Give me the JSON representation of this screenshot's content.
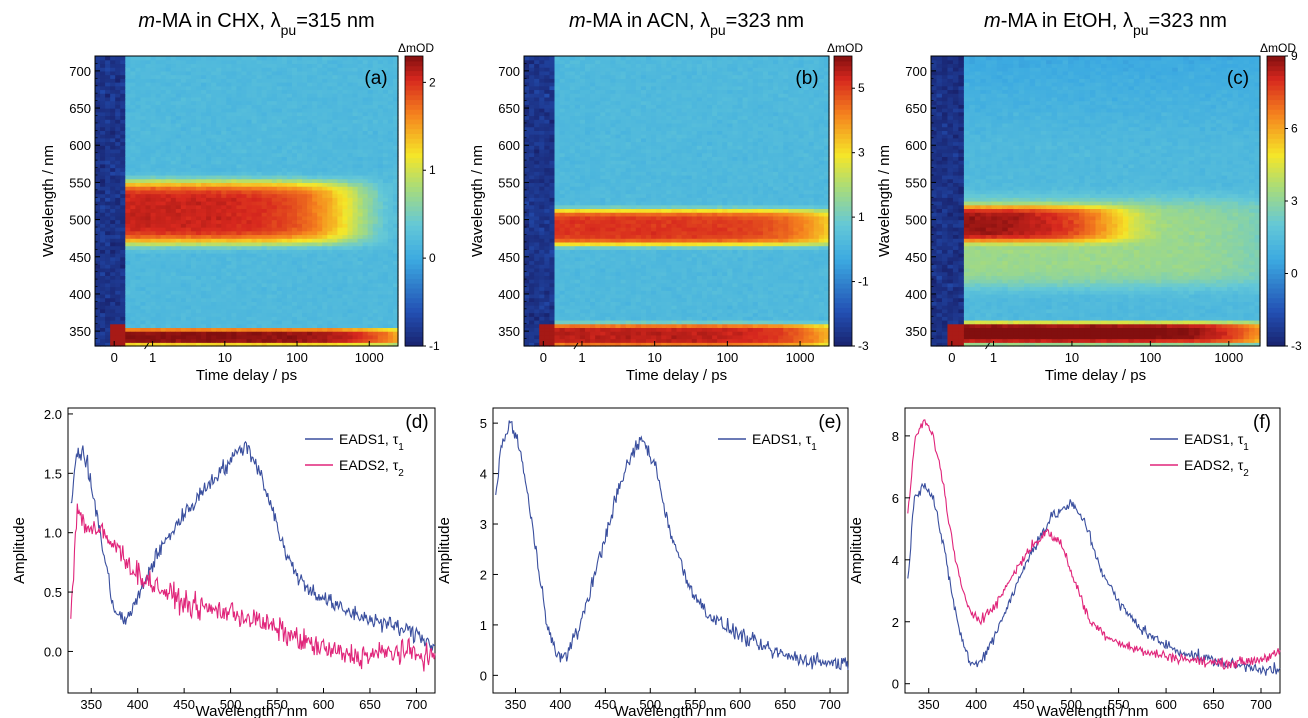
{
  "chart_data": [
    {
      "panel": "(a)",
      "type": "heatmap",
      "title": "m-MA in CHX, λpu=315 nm",
      "title_parts": {
        "italic": "m",
        "rest": "-MA in CHX, λ",
        "sub": "pu",
        "tail": "=315 nm"
      },
      "xlabel": "Time delay / ps",
      "ylabel": "Wavelength / nm",
      "x_ticks": [
        "0",
        "1",
        "10",
        "100",
        "1000"
      ],
      "y_ticks": [
        350,
        400,
        450,
        500,
        550,
        600,
        650,
        700
      ],
      "ylim": [
        330,
        720
      ],
      "colorbar": {
        "label": "ΔmOD",
        "ticks": [
          -1,
          0,
          1,
          2
        ],
        "range": [
          -1,
          2.3
        ]
      },
      "bands": [
        {
          "center_nm": 510,
          "width_nm": 38,
          "amplitude": 1.9,
          "decay_ps": 700
        },
        {
          "center_nm": 343,
          "width_nm": 10,
          "amplitude": 2.1,
          "decay_ps": 5000
        }
      ],
      "background": 0.55
    },
    {
      "panel": "(b)",
      "type": "heatmap",
      "title": "m-MA in ACN, λpu=323 nm",
      "title_parts": {
        "italic": "m",
        "rest": "-MA in ACN, λ",
        "sub": "pu",
        "tail": "=323 nm"
      },
      "xlabel": "Time delay / ps",
      "ylabel": "Wavelength / nm",
      "x_ticks": [
        "0",
        "1",
        "10",
        "100",
        "1000"
      ],
      "y_ticks": [
        350,
        400,
        450,
        500,
        550,
        600,
        650,
        700
      ],
      "ylim": [
        330,
        720
      ],
      "colorbar": {
        "label": "ΔmOD",
        "ticks": [
          -3,
          -1,
          1,
          3,
          5
        ],
        "range": [
          -3,
          6
        ]
      },
      "bands": [
        {
          "center_nm": 490,
          "width_nm": 22,
          "amplitude": 4.9,
          "decay_ps": 5000
        },
        {
          "center_nm": 345,
          "width_nm": 14,
          "amplitude": 5.3,
          "decay_ps": 5000
        }
      ],
      "background": 0.1
    },
    {
      "panel": "(c)",
      "type": "heatmap",
      "title": "m-MA in EtOH, λpu=323 nm",
      "title_parts": {
        "italic": "m",
        "rest": "-MA in EtOH, λ",
        "sub": "pu",
        "tail": "=323 nm"
      },
      "xlabel": "Time delay / ps",
      "ylabel": "Wavelength / nm",
      "x_ticks": [
        "0",
        "1",
        "10",
        "100",
        "1000"
      ],
      "y_ticks": [
        350,
        400,
        450,
        500,
        550,
        600,
        650,
        700
      ],
      "ylim": [
        330,
        720
      ],
      "colorbar": {
        "label": "ΔmOD",
        "ticks": [
          -3,
          0,
          3,
          6,
          9
        ],
        "range": [
          -3,
          9
        ]
      },
      "bands": [
        {
          "center_nm": 495,
          "width_nm": 22,
          "amplitude": 5.5,
          "decay_ps": 40
        },
        {
          "center_nm": 348,
          "width_nm": 13,
          "amplitude": 8.0,
          "decay_ps": 5000
        },
        {
          "center_nm": 470,
          "width_nm": 55,
          "amplitude": 2.0,
          "decay_ps": 5000
        }
      ],
      "background": 0.5
    },
    {
      "panel": "(d)",
      "type": "line",
      "xlabel": "Wavelength / nm",
      "ylabel": "Amplitude",
      "xlim": [
        325,
        720
      ],
      "ylim": [
        -0.35,
        2.05
      ],
      "x_ticks": [
        350,
        400,
        450,
        500,
        550,
        600,
        650,
        700
      ],
      "y_ticks": [
        0.0,
        0.5,
        1.0,
        1.5,
        2.0
      ],
      "y_tick_labels": [
        "0.0",
        "0.5",
        "1.0",
        "1.5",
        "2.0"
      ],
      "series": [
        {
          "name": "EADS1, τ1",
          "name_parts": [
            "EADS1, τ",
            "1"
          ],
          "color": "#3a4f9e",
          "noise": 0.08,
          "x": [
            328,
            335,
            345,
            355,
            365,
            375,
            385,
            395,
            405,
            420,
            440,
            460,
            480,
            500,
            515,
            530,
            545,
            560,
            580,
            600,
            620,
            640,
            660,
            680,
            700,
            720
          ],
          "y": [
            1.25,
            1.7,
            1.6,
            1.2,
            0.75,
            0.35,
            0.25,
            0.35,
            0.55,
            0.8,
            1.05,
            1.25,
            1.45,
            1.6,
            1.75,
            1.55,
            1.2,
            0.8,
            0.55,
            0.45,
            0.35,
            0.3,
            0.25,
            0.2,
            0.15,
            0.05
          ]
        },
        {
          "name": "EADS2, τ2",
          "name_parts": [
            "EADS2, τ",
            "2"
          ],
          "color": "#e0257a",
          "noise": 0.11,
          "x": [
            328,
            335,
            345,
            360,
            380,
            400,
            420,
            440,
            460,
            480,
            500,
            520,
            540,
            560,
            580,
            600,
            620,
            640,
            660,
            680,
            700,
            720
          ],
          "y": [
            0.3,
            1.2,
            1.05,
            1.0,
            0.85,
            0.65,
            0.55,
            0.45,
            0.38,
            0.35,
            0.33,
            0.28,
            0.22,
            0.15,
            0.08,
            0.02,
            -0.02,
            -0.04,
            -0.02,
            0.0,
            -0.02,
            -0.05
          ]
        }
      ]
    },
    {
      "panel": "(e)",
      "type": "line",
      "xlabel": "Wavelength / nm",
      "ylabel": "Amplitude",
      "xlim": [
        325,
        720
      ],
      "ylim": [
        -0.35,
        5.3
      ],
      "x_ticks": [
        350,
        400,
        450,
        500,
        550,
        600,
        650,
        700
      ],
      "y_ticks": [
        0,
        1,
        2,
        3,
        4,
        5
      ],
      "y_tick_labels": [
        "0",
        "1",
        "2",
        "3",
        "4",
        "5"
      ],
      "series": [
        {
          "name": "EADS1, τ1",
          "name_parts": [
            "EADS1, τ",
            "1"
          ],
          "color": "#3a4f9e",
          "noise": 0.17,
          "x": [
            328,
            335,
            345,
            355,
            365,
            375,
            385,
            395,
            405,
            420,
            440,
            460,
            475,
            490,
            505,
            520,
            540,
            560,
            580,
            600,
            620,
            640,
            660,
            680,
            700,
            720
          ],
          "y": [
            3.6,
            4.6,
            5.0,
            4.5,
            3.4,
            2.2,
            1.1,
            0.4,
            0.35,
            0.9,
            2.1,
            3.4,
            4.2,
            4.7,
            4.2,
            3.0,
            1.9,
            1.3,
            1.0,
            0.8,
            0.6,
            0.45,
            0.35,
            0.3,
            0.25,
            0.25
          ]
        }
      ]
    },
    {
      "panel": "(f)",
      "type": "line",
      "xlabel": "Wavelength / nm",
      "ylabel": "Amplitude",
      "xlim": [
        325,
        720
      ],
      "ylim": [
        -0.3,
        8.9
      ],
      "x_ticks": [
        350,
        400,
        450,
        500,
        550,
        600,
        650,
        700
      ],
      "y_ticks": [
        0,
        2,
        4,
        6,
        8
      ],
      "y_tick_labels": [
        "0",
        "2",
        "4",
        "6",
        "8"
      ],
      "series": [
        {
          "name": "EADS1, τ1",
          "name_parts": [
            "EADS1, τ",
            "1"
          ],
          "color": "#3a4f9e",
          "noise": 0.2,
          "x": [
            328,
            335,
            345,
            355,
            365,
            375,
            385,
            395,
            405,
            420,
            440,
            460,
            480,
            500,
            515,
            530,
            550,
            570,
            590,
            610,
            630,
            650,
            670,
            690,
            710,
            720
          ],
          "y": [
            3.4,
            6.0,
            6.5,
            6.0,
            4.5,
            2.8,
            1.4,
            0.6,
            0.7,
            1.6,
            3.0,
            4.4,
            5.4,
            5.8,
            5.2,
            3.8,
            2.6,
            1.9,
            1.4,
            1.1,
            0.9,
            0.75,
            0.6,
            0.55,
            0.45,
            0.4
          ]
        },
        {
          "name": "EADS2, τ2",
          "name_parts": [
            "EADS2, τ",
            "2"
          ],
          "color": "#e0257a",
          "noise": 0.18,
          "x": [
            328,
            335,
            345,
            355,
            365,
            375,
            385,
            395,
            405,
            420,
            440,
            460,
            475,
            490,
            505,
            520,
            540,
            560,
            580,
            600,
            620,
            640,
            660,
            680,
            700,
            720
          ],
          "y": [
            5.4,
            7.8,
            8.5,
            8.0,
            6.5,
            4.5,
            3.0,
            2.3,
            2.1,
            2.5,
            3.6,
            4.5,
            4.9,
            4.5,
            3.2,
            2.0,
            1.5,
            1.2,
            1.0,
            0.9,
            0.8,
            0.7,
            0.65,
            0.7,
            0.8,
            1.0
          ]
        }
      ]
    }
  ]
}
